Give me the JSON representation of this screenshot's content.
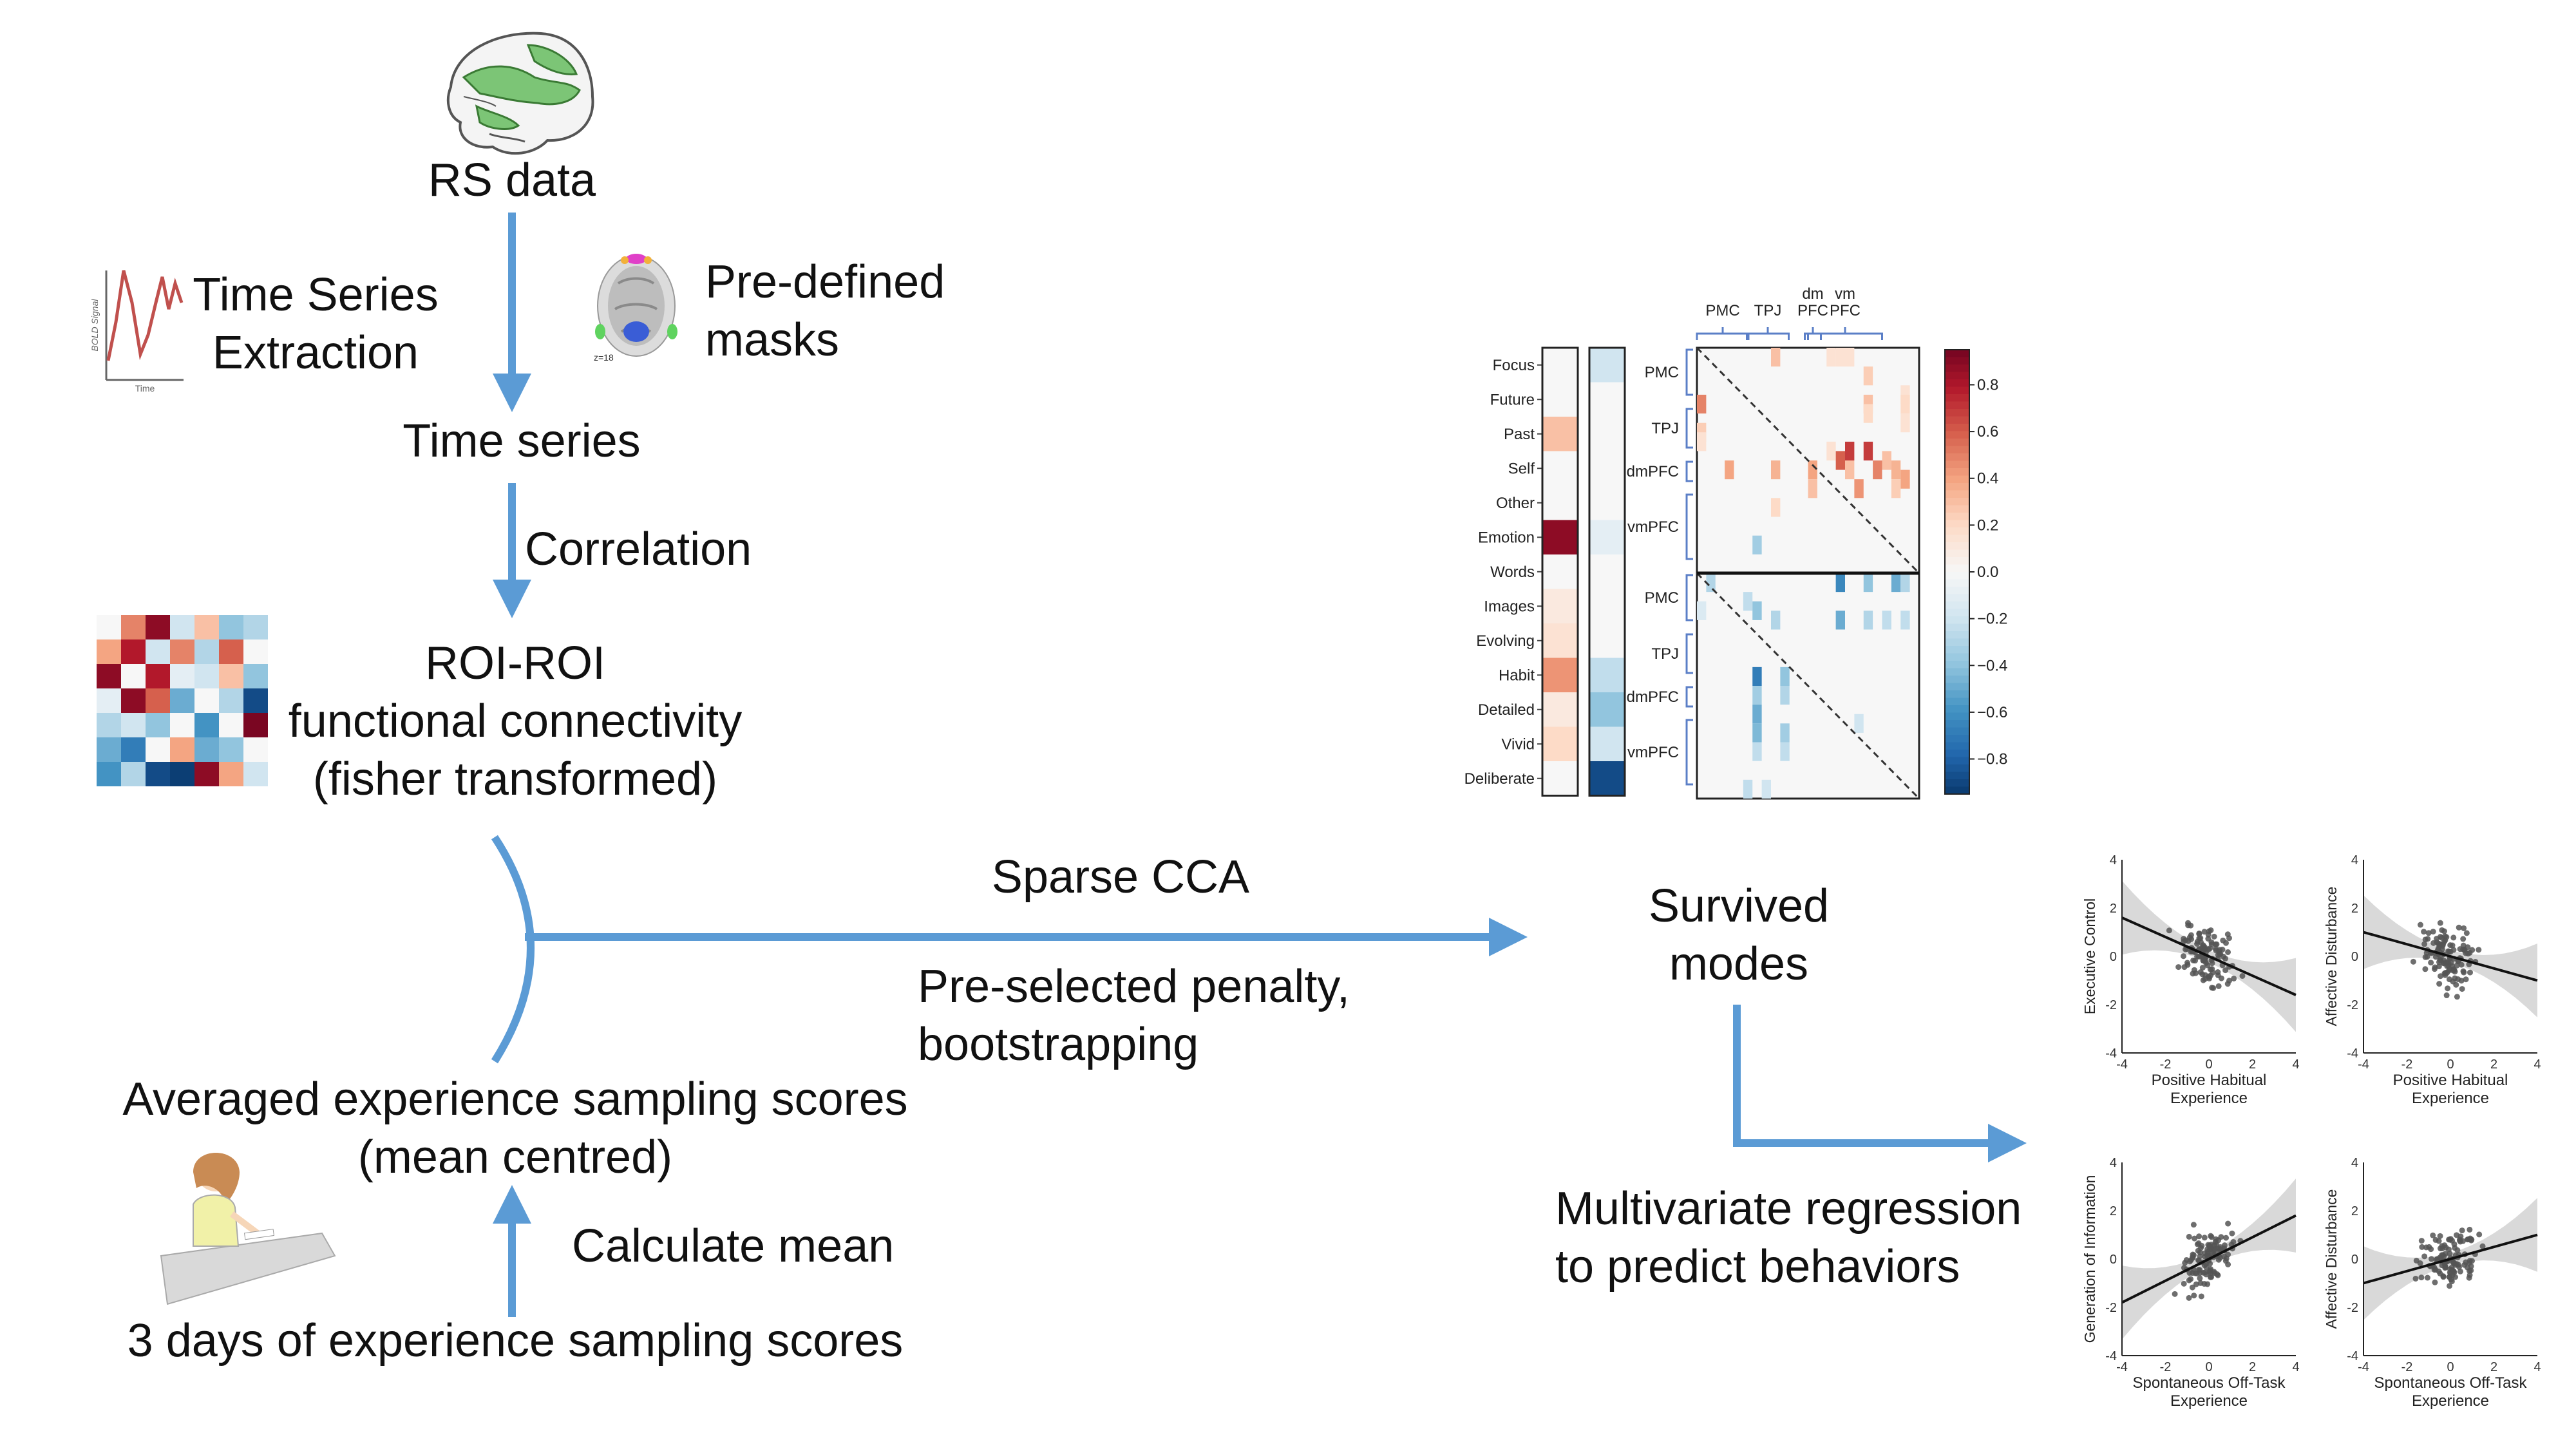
{
  "steps": {
    "rs_data": "RS data",
    "time_series_extraction_line1": "Time Series",
    "time_series_extraction_line2": "Extraction",
    "predefined_masks_line1": "Pre-defined",
    "predefined_masks_line2": "masks",
    "time_series": "Time series",
    "correlation": "Correlation",
    "roi_line1": "ROI-ROI",
    "roi_line2": "functional connectivity",
    "roi_line3": "(fisher transformed)",
    "sparse_cca": "Sparse CCA",
    "penalty_line1": "Pre-selected penalty,",
    "penalty_line2": "bootstrapping",
    "survived_line1": "Survived",
    "survived_line2": "modes",
    "averaged_line1": "Averaged experience sampling scores",
    "averaged_line2": "(mean centred)",
    "calculate_mean": "Calculate mean",
    "three_days": "3 days of experience sampling scores",
    "regression_line1": "Multivariate regression",
    "regression_line2": "to predict behaviors"
  },
  "timeseries_icon": {
    "ylabel": "BOLD Signal",
    "xlabel": "Time"
  },
  "mask_icon": {
    "slice_label": "z=18"
  },
  "loadings": {
    "labels": [
      "Focus",
      "Future",
      "Past",
      "Self",
      "Other",
      "Emotion",
      "Words",
      "Images",
      "Evolving",
      "Habit",
      "Detailed",
      "Vivid",
      "Deliberate"
    ],
    "mode1": [
      0.0,
      0.0,
      0.3,
      0.0,
      0.0,
      0.9,
      0.0,
      0.1,
      0.15,
      0.45,
      0.1,
      0.2,
      0.0
    ],
    "mode2": [
      -0.2,
      0.0,
      0.0,
      0.0,
      0.0,
      -0.1,
      0.0,
      0.0,
      0.0,
      -0.25,
      -0.4,
      -0.2,
      -0.9
    ]
  },
  "connectivity": {
    "top_groups": [
      "PMC",
      "TPJ",
      "dm\nPFC",
      "vm\nPFC"
    ],
    "row_groups": [
      "PMC",
      "TPJ",
      "dmPFC",
      "vmPFC",
      "PMC",
      "TPJ",
      "dmPFC",
      "vmPFC"
    ],
    "colorbar_ticks": [
      "0.8",
      "0.6",
      "0.4",
      "0.2",
      "0.0",
      "−0.2",
      "−0.4",
      "−0.6",
      "−0.8"
    ]
  },
  "scatter_plots": [
    {
      "xlabel_line1": "Positive Habitual",
      "xlabel_line2": "Experience",
      "ylabel": "Executive Control",
      "slope": -0.4
    },
    {
      "xlabel_line1": "Positive Habitual",
      "xlabel_line2": "Experience",
      "ylabel": "Affective Disturbance",
      "slope": -0.25
    },
    {
      "xlabel_line1": "Spontaneous Off-Task",
      "xlabel_line2": "Experience",
      "ylabel": "Generation of Information",
      "slope": 0.45
    },
    {
      "xlabel_line1": "Spontaneous Off-Task",
      "xlabel_line2": "Experience",
      "ylabel": "Affective Disturbance",
      "slope": 0.25
    }
  ],
  "scatter_ticks": [
    "-4",
    "-2",
    "0",
    "2",
    "4"
  ],
  "colors": {
    "arrow": "#5b9bd5",
    "red": "#b2182b",
    "blue": "#2166ac",
    "brain": "#7cc576"
  }
}
